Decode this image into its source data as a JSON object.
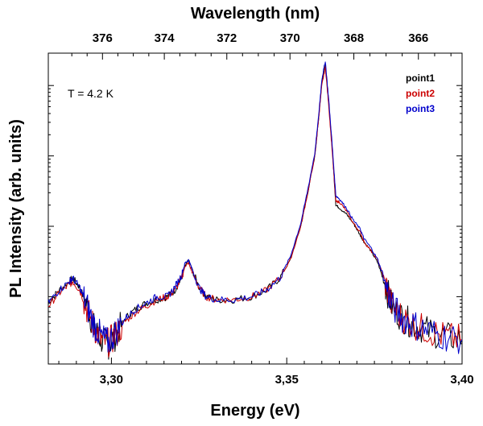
{
  "chart_data": {
    "type": "line",
    "title": "",
    "xlabel": "Energy (eV)",
    "ylabel": "PL Intensity (arb. units)",
    "top_xlabel": "Wavelength (nm)",
    "xlim": [
      3.282,
      3.4
    ],
    "ylim": [
      0.0,
      1.0
    ],
    "y_scale": "log",
    "y_ticklabels_shown": false,
    "x_ticks": [
      3.3,
      3.35,
      3.4
    ],
    "x_ticklabels": [
      "3,30",
      "3,35",
      "3,40"
    ],
    "top_ticks_nm": [
      376,
      374,
      372,
      370,
      368,
      366
    ],
    "top_ticklabels": [
      "376",
      "374",
      "372",
      "370",
      "368",
      "366"
    ],
    "annotation": "T = 4.2 K",
    "legend_position": "top-right",
    "series": [
      {
        "name": "point1",
        "color": "#000000",
        "x": [
          3.282,
          3.285,
          3.288,
          3.289,
          3.291,
          3.293,
          3.295,
          3.297,
          3.299,
          3.301,
          3.304,
          3.307,
          3.31,
          3.313,
          3.316,
          3.318,
          3.32,
          3.321,
          3.322,
          3.323,
          3.325,
          3.327,
          3.33,
          3.335,
          3.34,
          3.344,
          3.348,
          3.351,
          3.354,
          3.356,
          3.358,
          3.359,
          3.36,
          3.361,
          3.362,
          3.363,
          3.364,
          3.365,
          3.367,
          3.369,
          3.371,
          3.372,
          3.374,
          3.376,
          3.378,
          3.38,
          3.383,
          3.386,
          3.39,
          3.395,
          3.4
        ],
        "y": [
          0.2,
          0.24,
          0.27,
          0.28,
          0.25,
          0.19,
          0.12,
          0.08,
          0.06,
          0.09,
          0.15,
          0.18,
          0.2,
          0.21,
          0.22,
          0.24,
          0.28,
          0.32,
          0.34,
          0.31,
          0.25,
          0.22,
          0.21,
          0.21,
          0.22,
          0.24,
          0.28,
          0.34,
          0.45,
          0.56,
          0.68,
          0.79,
          0.92,
          0.98,
          0.85,
          0.7,
          0.52,
          0.51,
          0.49,
          0.46,
          0.42,
          0.4,
          0.37,
          0.33,
          0.26,
          0.19,
          0.15,
          0.13,
          0.11,
          0.09,
          0.08
        ]
      },
      {
        "name": "point2",
        "color": "#cc0000",
        "x": [
          3.282,
          3.285,
          3.288,
          3.289,
          3.291,
          3.293,
          3.295,
          3.297,
          3.299,
          3.301,
          3.304,
          3.307,
          3.31,
          3.313,
          3.316,
          3.318,
          3.32,
          3.321,
          3.322,
          3.323,
          3.325,
          3.327,
          3.33,
          3.335,
          3.34,
          3.344,
          3.348,
          3.351,
          3.354,
          3.356,
          3.358,
          3.359,
          3.36,
          3.361,
          3.362,
          3.363,
          3.364,
          3.365,
          3.367,
          3.369,
          3.371,
          3.372,
          3.374,
          3.376,
          3.378,
          3.38,
          3.383,
          3.386,
          3.39,
          3.395,
          3.4
        ],
        "y": [
          0.19,
          0.23,
          0.26,
          0.27,
          0.24,
          0.18,
          0.12,
          0.08,
          0.07,
          0.09,
          0.14,
          0.17,
          0.19,
          0.21,
          0.22,
          0.24,
          0.28,
          0.32,
          0.33,
          0.3,
          0.25,
          0.22,
          0.21,
          0.21,
          0.22,
          0.24,
          0.28,
          0.34,
          0.45,
          0.56,
          0.68,
          0.79,
          0.91,
          0.97,
          0.84,
          0.69,
          0.53,
          0.53,
          0.5,
          0.46,
          0.43,
          0.4,
          0.37,
          0.34,
          0.27,
          0.19,
          0.15,
          0.13,
          0.11,
          0.09,
          0.08
        ]
      },
      {
        "name": "point3",
        "color": "#0000cc",
        "x": [
          3.282,
          3.285,
          3.288,
          3.289,
          3.291,
          3.293,
          3.295,
          3.297,
          3.299,
          3.301,
          3.304,
          3.307,
          3.31,
          3.313,
          3.316,
          3.318,
          3.32,
          3.321,
          3.322,
          3.323,
          3.325,
          3.327,
          3.33,
          3.335,
          3.34,
          3.344,
          3.348,
          3.351,
          3.354,
          3.356,
          3.358,
          3.359,
          3.36,
          3.361,
          3.362,
          3.363,
          3.364,
          3.365,
          3.367,
          3.369,
          3.371,
          3.372,
          3.374,
          3.376,
          3.378,
          3.38,
          3.383,
          3.386,
          3.39,
          3.395,
          3.4
        ],
        "y": [
          0.2,
          0.24,
          0.27,
          0.28,
          0.25,
          0.19,
          0.13,
          0.09,
          0.07,
          0.1,
          0.15,
          0.18,
          0.2,
          0.22,
          0.22,
          0.25,
          0.29,
          0.33,
          0.34,
          0.31,
          0.25,
          0.22,
          0.21,
          0.21,
          0.22,
          0.24,
          0.28,
          0.35,
          0.46,
          0.57,
          0.69,
          0.8,
          0.93,
          0.99,
          0.86,
          0.71,
          0.55,
          0.54,
          0.51,
          0.47,
          0.44,
          0.41,
          0.38,
          0.34,
          0.27,
          0.19,
          0.15,
          0.13,
          0.11,
          0.09,
          0.08
        ]
      }
    ]
  }
}
